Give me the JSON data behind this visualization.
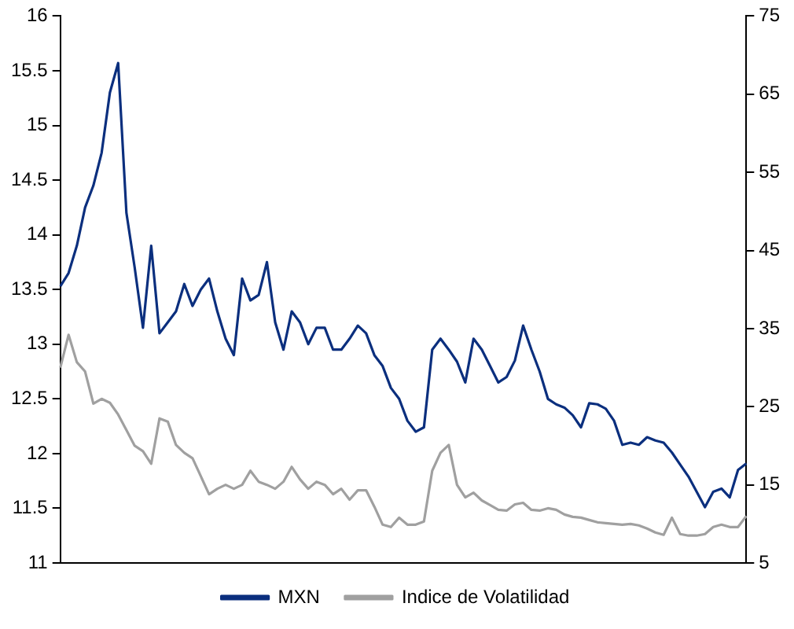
{
  "chart_data": {
    "type": "line",
    "categories": [
      null,
      null,
      null,
      null,
      null,
      null,
      null,
      null,
      null,
      null,
      null,
      null,
      null,
      null,
      null,
      null,
      null,
      null,
      null,
      null,
      null,
      null,
      null,
      null,
      null,
      null,
      null,
      null,
      null,
      null,
      null,
      null,
      null,
      null,
      null,
      null,
      null,
      null,
      null,
      null,
      null,
      null,
      null,
      null,
      null,
      null,
      null,
      null,
      null,
      null,
      null,
      null,
      null,
      null,
      null,
      null,
      null,
      null,
      null,
      null,
      null,
      null,
      null,
      null,
      null,
      null,
      null,
      null,
      null,
      null,
      null,
      null,
      null,
      null,
      null,
      null,
      null,
      null,
      null,
      null,
      null,
      null,
      null,
      null
    ],
    "series": [
      {
        "name": "MXN",
        "color": "#0b2f7e",
        "values": [
          13.53,
          13.65,
          13.9,
          14.25,
          14.45,
          14.75,
          15.3,
          15.57,
          14.2,
          13.7,
          13.15,
          13.9,
          13.1,
          13.2,
          13.3,
          13.55,
          13.35,
          13.5,
          13.6,
          13.3,
          13.05,
          12.9,
          13.6,
          13.4,
          13.45,
          13.75,
          13.2,
          12.95,
          13.3,
          13.2,
          13.0,
          13.15,
          13.15,
          12.95,
          12.95,
          13.05,
          13.17,
          13.1,
          12.9,
          12.8,
          12.6,
          12.5,
          12.3,
          12.2,
          12.24,
          12.95,
          13.05,
          12.95,
          12.84,
          12.65,
          13.05,
          12.95,
          12.8,
          12.65,
          12.7,
          12.85,
          13.17,
          12.95,
          12.75,
          12.5,
          12.45,
          12.42,
          12.35,
          12.24,
          12.46,
          12.45,
          12.41,
          12.3,
          12.08,
          12.1,
          12.08,
          12.15,
          12.12,
          12.1,
          12.01,
          11.9,
          11.79,
          11.65,
          11.51,
          11.65,
          11.68,
          11.6,
          11.85,
          11.91
        ]
      },
      {
        "name": "Indice de Volatilidad",
        "color": "#a0a0a0",
        "axis": "y2",
        "values": [
          30.0,
          34.2,
          30.7,
          29.5,
          25.4,
          26.0,
          25.5,
          24.0,
          22.0,
          20.0,
          19.3,
          17.7,
          23.5,
          23.1,
          20.1,
          19.1,
          18.4,
          16.1,
          13.8,
          14.5,
          15.0,
          14.5,
          15.0,
          16.8,
          15.4,
          15.0,
          14.5,
          15.4,
          17.3,
          15.7,
          14.5,
          15.4,
          15.0,
          13.8,
          14.5,
          13.1,
          14.3,
          14.3,
          12.2,
          9.9,
          9.6,
          10.8,
          9.9,
          9.9,
          10.3,
          16.8,
          19.1,
          20.1,
          15.0,
          13.4,
          14.0,
          13.0,
          12.4,
          11.8,
          11.7,
          12.5,
          12.7,
          11.8,
          11.7,
          12.0,
          11.8,
          11.2,
          10.9,
          10.8,
          10.5,
          10.2,
          10.1,
          10.0,
          9.9,
          10.0,
          9.8,
          9.4,
          8.9,
          8.6,
          10.8,
          8.7,
          8.5,
          8.5,
          8.7,
          9.6,
          9.9,
          9.6,
          9.6,
          11.0
        ]
      }
    ],
    "ylim": [
      11,
      16
    ],
    "yticks": [
      11,
      11.5,
      12,
      12.5,
      13,
      13.5,
      14,
      14.5,
      15,
      15.5,
      16
    ],
    "y2lim": [
      5,
      75
    ],
    "y2ticks": [
      5,
      15,
      25,
      35,
      45,
      55,
      65,
      75
    ],
    "tick_labels": "y",
    "grid": false,
    "legend": "bottom",
    "marker": "none",
    "line_style": "solid"
  }
}
